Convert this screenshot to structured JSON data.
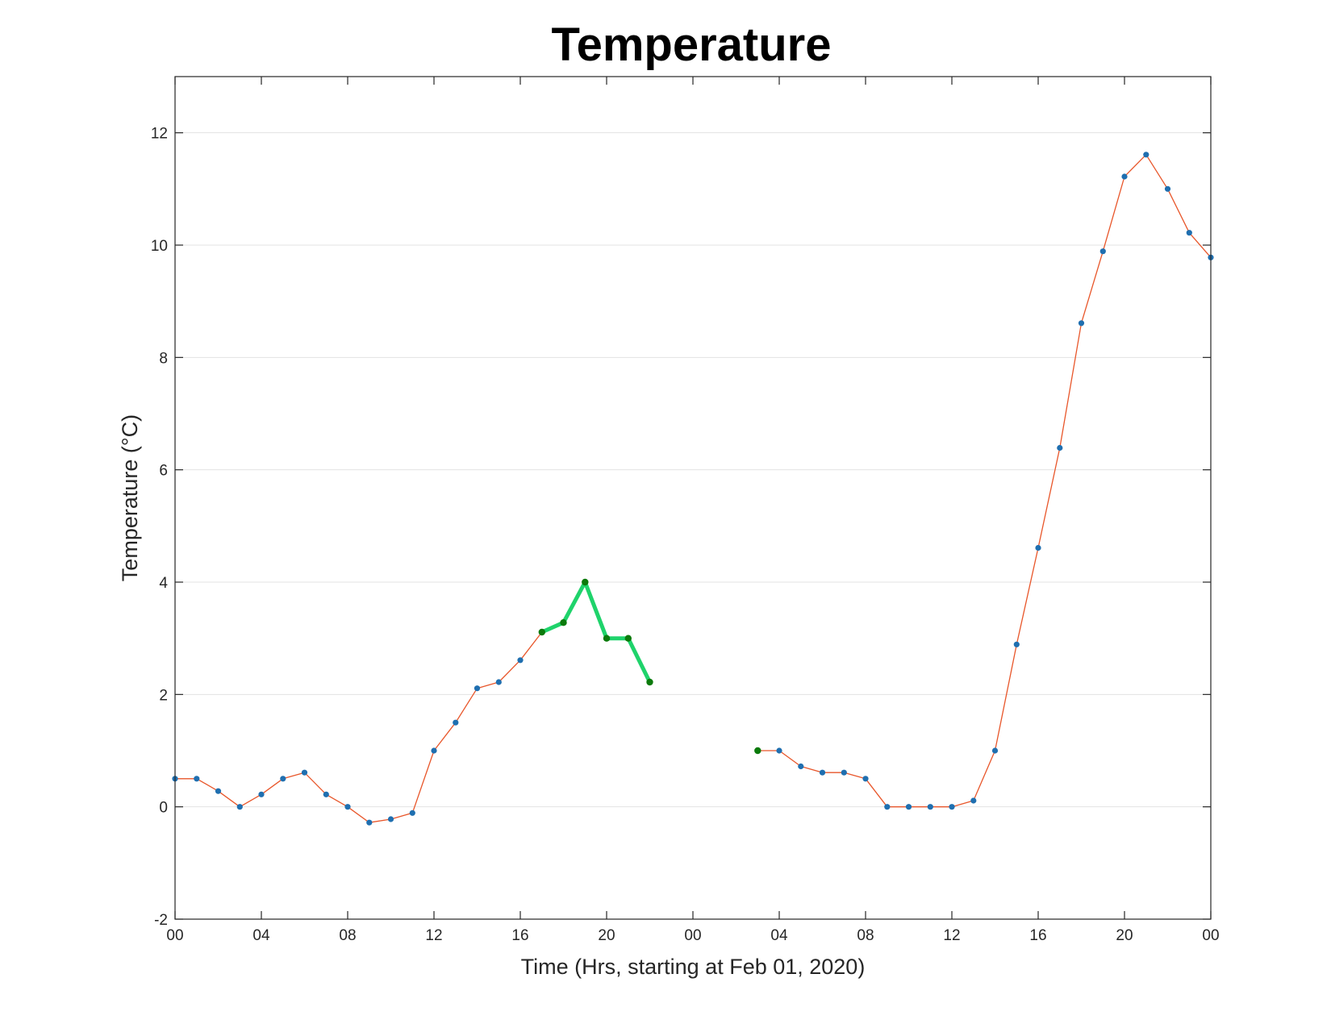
{
  "chart_data": {
    "type": "line",
    "title": "Temperature",
    "xlabel": "Time (Hrs, starting at Feb 01, 2020)",
    "ylabel": "Temperature (°C)",
    "x_unit": "hour",
    "xlim": [
      "2020-02-01 00:00",
      "2020-02-03 00:00"
    ],
    "ylim": [
      -2,
      13
    ],
    "x_tick_labels": [
      "00",
      "04",
      "08",
      "12",
      "16",
      "20",
      "00",
      "04",
      "08",
      "12",
      "16",
      "20",
      "00"
    ],
    "x_ticks": [
      "2020-02-01 00:00",
      "2020-02-01 04:00",
      "2020-02-01 08:00",
      "2020-02-01 12:00",
      "2020-02-01 16:00",
      "2020-02-01 20:00",
      "2020-02-02 00:00",
      "2020-02-02 04:00",
      "2020-02-02 08:00",
      "2020-02-02 12:00",
      "2020-02-02 16:00",
      "2020-02-02 20:00",
      "2020-02-03 00:00"
    ],
    "y_ticks": [
      -2,
      0,
      2,
      4,
      6,
      8,
      10,
      12
    ],
    "grid": "horizontal",
    "colors": {
      "line": "#e8562a",
      "highlight_line": "#1fd36b",
      "marker": "#1f6fb0",
      "highlight_marker": "#0b7a0b",
      "grid": "#e3e3e3",
      "axes": "#262626"
    },
    "series": [
      {
        "style": "observed",
        "points": [
          [
            "2020-02-01 00:00",
            0.5
          ],
          [
            "2020-02-01 01:00",
            0.5
          ],
          [
            "2020-02-01 02:00",
            0.28
          ],
          [
            "2020-02-01 03:00",
            0.0
          ],
          [
            "2020-02-01 04:00",
            0.22
          ],
          [
            "2020-02-01 05:00",
            0.5
          ],
          [
            "2020-02-01 06:00",
            0.61
          ],
          [
            "2020-02-01 07:00",
            0.22
          ],
          [
            "2020-02-01 08:00",
            0.0
          ],
          [
            "2020-02-01 09:00",
            -0.28
          ],
          [
            "2020-02-01 10:00",
            -0.22
          ],
          [
            "2020-02-01 11:00",
            -0.11
          ],
          [
            "2020-02-01 12:00",
            1.0
          ],
          [
            "2020-02-01 13:00",
            1.5
          ],
          [
            "2020-02-01 14:00",
            2.11
          ],
          [
            "2020-02-01 15:00",
            2.22
          ],
          [
            "2020-02-01 16:00",
            2.61
          ],
          [
            "2020-02-01 17:00",
            3.11
          ],
          [
            "2020-02-01 18:00",
            3.28
          ],
          [
            "2020-02-01 19:00",
            4.0
          ],
          [
            "2020-02-01 20:00",
            3.0
          ],
          [
            "2020-02-01 21:00",
            3.0
          ],
          [
            "2020-02-01 22:00",
            2.22
          ],
          null,
          [
            "2020-02-02 03:00",
            1.0
          ],
          [
            "2020-02-02 04:00",
            1.0
          ],
          [
            "2020-02-02 05:00",
            0.72
          ],
          [
            "2020-02-02 06:00",
            0.61
          ],
          [
            "2020-02-02 07:00",
            0.61
          ],
          [
            "2020-02-02 08:00",
            0.5
          ],
          [
            "2020-02-02 09:00",
            0.0
          ],
          [
            "2020-02-02 10:00",
            0.0
          ],
          [
            "2020-02-02 11:00",
            0.0
          ],
          [
            "2020-02-02 12:00",
            0.0
          ],
          [
            "2020-02-02 13:00",
            0.11
          ],
          [
            "2020-02-02 14:00",
            1.0
          ],
          [
            "2020-02-02 15:00",
            2.89
          ],
          [
            "2020-02-02 16:00",
            4.61
          ],
          [
            "2020-02-02 17:00",
            6.39
          ],
          [
            "2020-02-02 18:00",
            8.61
          ],
          [
            "2020-02-02 19:00",
            9.89
          ],
          [
            "2020-02-02 20:00",
            11.22
          ],
          [
            "2020-02-02 21:00",
            11.61
          ],
          [
            "2020-02-02 22:00",
            11.0
          ],
          [
            "2020-02-02 23:00",
            10.22
          ],
          [
            "2020-02-03 00:00",
            9.78
          ]
        ]
      },
      {
        "style": "highlighted",
        "points": [
          [
            "2020-02-01 17:00",
            3.11
          ],
          [
            "2020-02-01 18:00",
            3.28
          ],
          [
            "2020-02-01 19:00",
            4.0
          ],
          [
            "2020-02-01 20:00",
            3.0
          ],
          [
            "2020-02-01 21:00",
            3.0
          ],
          [
            "2020-02-01 22:00",
            2.22
          ]
        ]
      },
      {
        "style": "highlighted-point",
        "points": [
          [
            "2020-02-02 03:00",
            1.0
          ]
        ]
      }
    ]
  }
}
